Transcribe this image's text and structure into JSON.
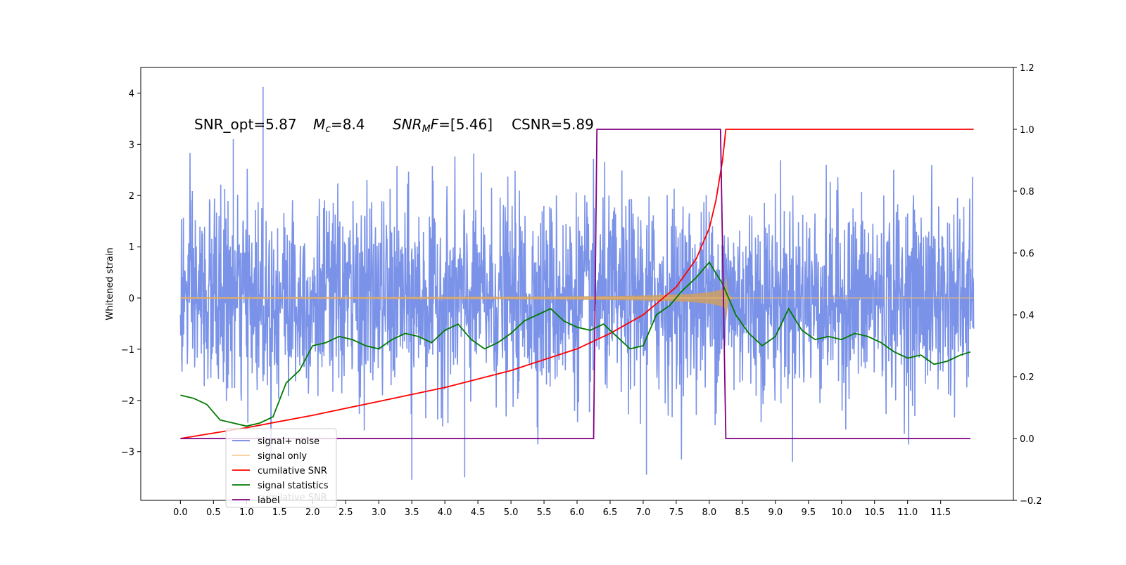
{
  "chart_data": {
    "type": "line",
    "title": "",
    "xlabel": "",
    "ylabel": "Whitened strain",
    "xlim": [
      -0.6,
      12.6
    ],
    "ylim": [
      -3.95,
      4.5
    ],
    "y2lim": [
      -0.2,
      1.2
    ],
    "grid": false,
    "x_ticks": [
      "0.0",
      "0.5",
      "1.0",
      "1.5",
      "2.0",
      "2.5",
      "3.0",
      "3.5",
      "4.0",
      "4.5",
      "5.0",
      "5.5",
      "6.0",
      "6.5",
      "7.0",
      "7.5",
      "8.0",
      "8.5",
      "9.0",
      "9.5",
      "10.0",
      "10.5",
      "11.0",
      "11.5"
    ],
    "y_ticks": [
      "4",
      "3",
      "2",
      "1",
      "0",
      "−1",
      "−2",
      "−3"
    ],
    "y2_ticks": [
      "1.2",
      "1.0",
      "0.8",
      "0.6",
      "0.4",
      "0.2",
      "0.0",
      "−0.2"
    ],
    "annotation": {
      "snr_opt": "SNR_opt=5.87",
      "mc_symbol": "M",
      "mc_sub": "c",
      "mc_value": "=8.4",
      "snrmf_symbol": "SNR",
      "snrmf_sub": "M",
      "snrmf_symbol2": "F",
      "snrmf_value": "=[5.46]",
      "csnr": "CSNR=5.89"
    },
    "legend": {
      "placement": "lower-left",
      "entries": [
        "signal+ noise",
        "signal only",
        "cumilative SNR",
        "signal statistics",
        "label"
      ],
      "hidden_text": "cumilative SNR"
    },
    "colors": {
      "signal_noise": "#6b86e6",
      "signal_only": "#f5b969",
      "signal_fill": "#c9a06b",
      "cumulative_snr": "#ff0000",
      "signal_statistics": "#007a00",
      "label": "#800080"
    },
    "series": [
      {
        "name": "signal+ noise",
        "axis": "left",
        "description_range": [
          -3.55,
          4.12
        ],
        "x_range": [
          0.0,
          12.0
        ]
      },
      {
        "name": "signal only",
        "axis": "left",
        "x_range": [
          0.0,
          12.0
        ],
        "peak_time": 8.25,
        "peak_amplitude": 0.55
      },
      {
        "name": "cumilative SNR",
        "axis": "right",
        "x": [
          0.0,
          1.0,
          2.0,
          3.0,
          4.0,
          5.0,
          6.0,
          6.5,
          7.0,
          7.5,
          7.8,
          8.0,
          8.1,
          8.2,
          8.25,
          12.0
        ],
        "values": [
          0.0,
          0.035,
          0.075,
          0.12,
          0.165,
          0.22,
          0.29,
          0.34,
          0.4,
          0.49,
          0.58,
          0.68,
          0.77,
          0.9,
          1.0,
          1.0
        ]
      },
      {
        "name": "signal statistics",
        "axis": "right",
        "x": [
          0.0,
          0.2,
          0.4,
          0.6,
          0.8,
          1.0,
          1.2,
          1.4,
          1.6,
          1.8,
          2.0,
          2.2,
          2.4,
          2.6,
          2.8,
          3.0,
          3.2,
          3.4,
          3.6,
          3.8,
          4.0,
          4.2,
          4.4,
          4.6,
          4.8,
          5.0,
          5.2,
          5.4,
          5.6,
          5.8,
          6.0,
          6.2,
          6.4,
          6.6,
          6.8,
          7.0,
          7.2,
          7.4,
          7.6,
          7.8,
          8.0,
          8.2,
          8.4,
          8.6,
          8.8,
          9.0,
          9.2,
          9.4,
          9.6,
          9.8,
          10.0,
          10.2,
          10.4,
          10.6,
          10.8,
          11.0,
          11.2,
          11.4,
          11.6,
          11.8,
          11.95
        ],
        "values": [
          0.14,
          0.13,
          0.11,
          0.06,
          0.05,
          0.04,
          0.05,
          0.07,
          0.18,
          0.22,
          0.3,
          0.31,
          0.33,
          0.32,
          0.3,
          0.29,
          0.32,
          0.34,
          0.33,
          0.31,
          0.35,
          0.37,
          0.32,
          0.29,
          0.31,
          0.34,
          0.38,
          0.4,
          0.42,
          0.38,
          0.36,
          0.35,
          0.37,
          0.33,
          0.29,
          0.3,
          0.4,
          0.43,
          0.48,
          0.52,
          0.57,
          0.5,
          0.4,
          0.34,
          0.3,
          0.33,
          0.42,
          0.35,
          0.32,
          0.33,
          0.32,
          0.34,
          0.33,
          0.31,
          0.28,
          0.26,
          0.27,
          0.24,
          0.25,
          0.27,
          0.28
        ]
      },
      {
        "name": "label",
        "axis": "right",
        "x": [
          0.0,
          6.25,
          6.3,
          8.17,
          8.25,
          11.95
        ],
        "values": [
          0.0,
          0.0,
          1.0,
          1.0,
          0.0,
          0.0
        ]
      }
    ]
  }
}
